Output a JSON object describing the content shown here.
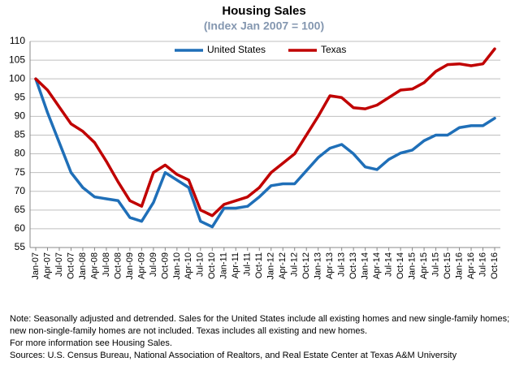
{
  "chart_data": {
    "type": "line",
    "title": "Housing Sales",
    "subtitle": "(Index Jan 2007 = 100)",
    "categories": [
      "Jan-07",
      "Apr-07",
      "Jul-07",
      "Oct-07",
      "Jan-08",
      "Apr-08",
      "Jul-08",
      "Oct-08",
      "Jan-09",
      "Apr-09",
      "Jul-09",
      "Oct-09",
      "Jan-10",
      "Apr-10",
      "Jul-10",
      "Oct-10",
      "Jan-11",
      "Apr-11",
      "Jul-11",
      "Oct-11",
      "Jan-12",
      "Apr-12",
      "Jul-12",
      "Oct-12",
      "Jan-13",
      "Apr-13",
      "Jul-13",
      "Oct-13",
      "Jan-14",
      "Apr-14",
      "Jul-14",
      "Oct-14",
      "Jan-15",
      "Apr-15",
      "Jul-15",
      "Oct-15",
      "Jan-16",
      "Apr-16",
      "Jul-16",
      "Oct-16"
    ],
    "series": [
      {
        "name": "United States",
        "color": "#1f6fb8",
        "values": [
          100,
          91,
          83,
          75,
          71,
          68.5,
          68,
          67.5,
          63,
          62,
          67,
          75,
          73,
          71,
          62,
          60.5,
          65.5,
          65.5,
          66,
          68.5,
          71.5,
          72,
          72,
          75.5,
          79,
          81.5,
          82.5,
          80,
          76.5,
          75.8,
          78.5,
          80.2,
          81,
          83.5,
          85,
          85,
          87,
          87.5,
          87.5,
          89.5
        ]
      },
      {
        "name": "Texas",
        "color": "#c00000",
        "values": [
          100,
          97,
          92.5,
          88,
          86,
          83,
          78,
          72.5,
          67.5,
          66,
          75,
          77,
          74.5,
          73,
          65,
          63.5,
          66.5,
          67.5,
          68.5,
          71,
          75,
          77.5,
          80,
          85,
          90,
          95.5,
          95,
          92.3,
          92,
          93,
          95,
          97,
          97.3,
          99,
          102,
          103.8,
          104,
          103.5,
          104,
          108
        ]
      }
    ],
    "ylim": [
      55,
      110
    ],
    "yticks": [
      55,
      60,
      65,
      70,
      75,
      80,
      85,
      90,
      95,
      100,
      105,
      110
    ],
    "grid": true,
    "legend": "top",
    "notes": [
      "Note: Seasonally adjusted and detrended. Sales for the United States include all existing homes and new single-family homes;",
      "new non-single-family homes are not included. Texas includes all existing and new homes.",
      "For more information see Housing Sales.",
      "Sources: U.S. Census Bureau, National Association of Realtors, and Real Estate Center at Texas A&M University"
    ]
  }
}
